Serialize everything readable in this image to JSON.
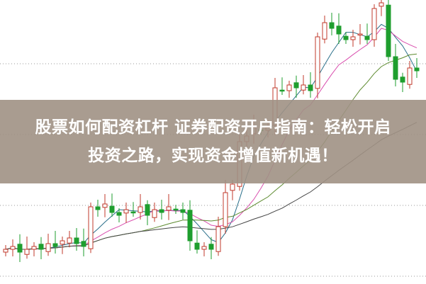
{
  "headline": {
    "line1": "股票如何配资杠杆 证券配资开户指南：轻松开启",
    "line2": "投资之路，实现资金增值新机遇！"
  },
  "colors": {
    "up": "#c0392b",
    "down": "#1e9e2e",
    "banner": "#a0918a",
    "ma_short": "#2a6f8a",
    "ma_mid": "#d94fae",
    "ma_long": "#5c8a2e",
    "ma_longest": "#444444"
  },
  "chart_data": {
    "type": "candlestick",
    "grid": "dotted horizontal",
    "closes": [
      12,
      13,
      11,
      12,
      13,
      12,
      14,
      13,
      15,
      16,
      14,
      13,
      27,
      26,
      28,
      25,
      24,
      26,
      25,
      27,
      24,
      26,
      25,
      27,
      26,
      25,
      15,
      12,
      13,
      12,
      20,
      32,
      35,
      50,
      52,
      55,
      54,
      55,
      69,
      68,
      70,
      69,
      70,
      68,
      87,
      92,
      90,
      88,
      86,
      87,
      88,
      86,
      97,
      99,
      80,
      72,
      71,
      76,
      75
    ]
  }
}
